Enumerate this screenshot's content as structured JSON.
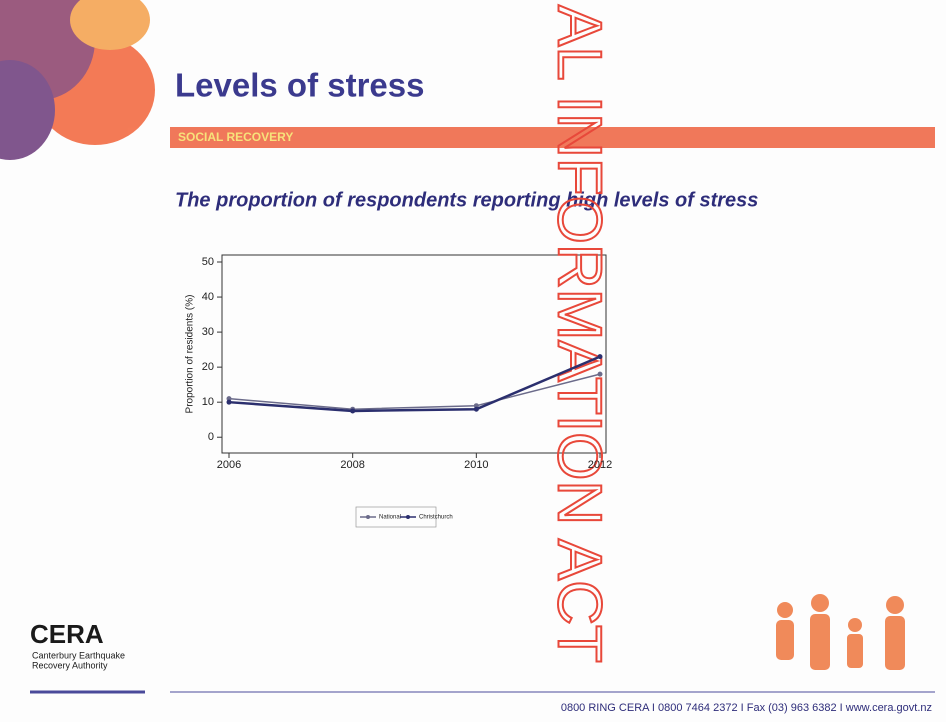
{
  "slide": {
    "title": "Levels of stress",
    "section": "SOCIAL RECOVERY",
    "subtitle": "The proportion of respondents reporting high levels of stress",
    "watermark": "AL INFORMATION ACT",
    "logo": {
      "name": "CERA",
      "line1": "Canterbury Earthquake",
      "line2": "Recovery Authority"
    },
    "footer": "0800 RING CERA  I  0800 7464 2372  I  Fax (03) 963 6382  I  www.cera.govt.nz"
  },
  "chart_data": {
    "type": "line",
    "ylabel": "Proportion of residents (%)",
    "categories": [
      "2006",
      "2008",
      "2010",
      "2012"
    ],
    "series": [
      {
        "name": "National",
        "color": "#6b6b8a",
        "values": [
          11,
          8,
          9,
          18
        ]
      },
      {
        "name": "Christchurch",
        "color": "#2b2f6e",
        "values": [
          10,
          7.5,
          8,
          23
        ]
      }
    ],
    "ylim": [
      -4.5,
      52
    ],
    "yticks": [
      0,
      10,
      20,
      30,
      40,
      50
    ],
    "legend": "bottom"
  }
}
